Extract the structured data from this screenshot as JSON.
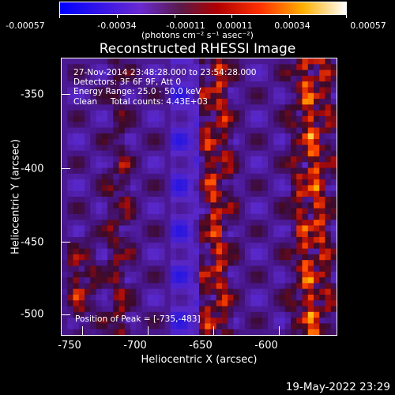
{
  "colorbar": {
    "ticks": [
      "-0.00057",
      "-0.00034",
      "-0.00011",
      "0.00011",
      "0.00034",
      "0.00057"
    ],
    "units": "(photons cm⁻² s⁻¹ asec⁻²)",
    "colors": [
      "#0000ff",
      "#5a1a9a",
      "#8a1a1a",
      "#ff2a00",
      "#ff9d00",
      "#ffffff"
    ]
  },
  "title": "Reconstructed RHESSI Image",
  "info": {
    "line1": "27-Nov-2014 23:48:28.000 to 23:54:28.000",
    "line2": "Detectors: 3F 6F 9F, Att 0",
    "line3": "Energy Range: 25.0 - 50.0 keV",
    "line4": "Clean     Total counts: 4.43E+03"
  },
  "peak": "Position of Peak = [-735,-483]",
  "xaxis": {
    "label": "Heliocentric X (arcsec)",
    "ticks": [
      "-750",
      "-700",
      "-650",
      "-600"
    ]
  },
  "yaxis": {
    "label": "Heliocentric Y (arcsec)",
    "ticks": [
      "-350",
      "-400",
      "-450",
      "-500"
    ]
  },
  "timestamp": "19-May-2022 23:29"
}
